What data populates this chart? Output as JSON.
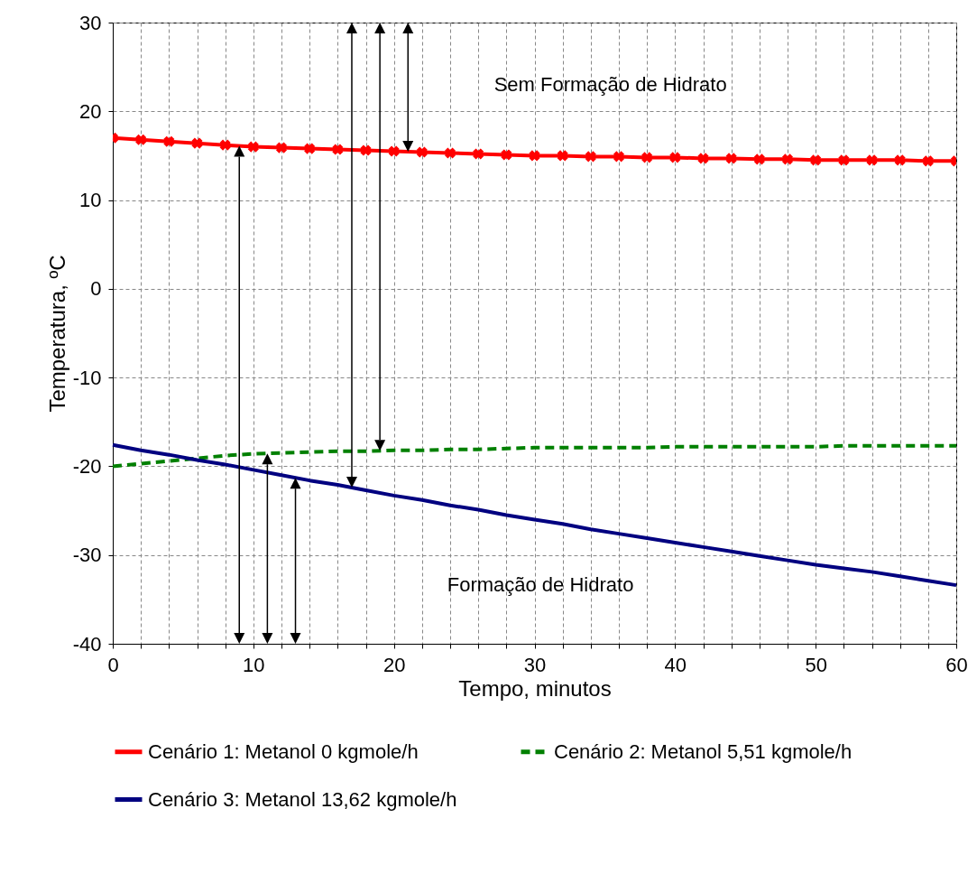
{
  "chart_data": {
    "type": "line",
    "xlabel": "Tempo, minutos",
    "ylabel": "Temperatura, ºC",
    "x": [
      0,
      2,
      4,
      6,
      8,
      10,
      12,
      14,
      16,
      18,
      20,
      22,
      24,
      26,
      28,
      30,
      32,
      34,
      36,
      38,
      40,
      42,
      44,
      46,
      48,
      50,
      52,
      54,
      56,
      58,
      60
    ],
    "series": [
      {
        "name": "Cenário 1: Metanol 0 kgmole/h",
        "color": "#ff0000",
        "marker": "cross",
        "line_style": "solid",
        "values": [
          17.0,
          16.8,
          16.6,
          16.4,
          16.2,
          16.0,
          15.9,
          15.8,
          15.7,
          15.6,
          15.5,
          15.4,
          15.3,
          15.2,
          15.1,
          15.0,
          15.0,
          14.9,
          14.9,
          14.8,
          14.8,
          14.7,
          14.7,
          14.6,
          14.6,
          14.5,
          14.5,
          14.5,
          14.5,
          14.4,
          14.4
        ]
      },
      {
        "name": "Cenário 2: Metanol 5,51 kgmole/h",
        "color": "#008000",
        "marker": "none",
        "line_style": "dashed",
        "values": [
          -20.0,
          -19.7,
          -19.4,
          -19.1,
          -18.8,
          -18.6,
          -18.5,
          -18.4,
          -18.3,
          -18.3,
          -18.2,
          -18.2,
          -18.1,
          -18.1,
          -18.0,
          -17.9,
          -17.9,
          -17.9,
          -17.9,
          -17.9,
          -17.8,
          -17.8,
          -17.8,
          -17.8,
          -17.8,
          -17.8,
          -17.7,
          -17.7,
          -17.7,
          -17.7,
          -17.7
        ]
      },
      {
        "name": "Cenário 3: Metanol 13,62 kgmole/h",
        "color": "#000080",
        "marker": "none",
        "line_style": "solid",
        "values": [
          -17.6,
          -18.2,
          -18.7,
          -19.3,
          -19.8,
          -20.4,
          -21.0,
          -21.6,
          -22.1,
          -22.7,
          -23.3,
          -23.8,
          -24.4,
          -24.9,
          -25.5,
          -26.0,
          -26.5,
          -27.1,
          -27.6,
          -28.1,
          -28.6,
          -29.1,
          -29.6,
          -30.1,
          -30.6,
          -31.1,
          -31.5,
          -31.9,
          -32.4,
          -32.9,
          -33.4
        ]
      }
    ],
    "xlim": [
      0,
      60
    ],
    "ylim": [
      -40,
      30
    ],
    "xticks": [
      0,
      {
        "value": 2,
        "label": null
      },
      {
        "value": 4,
        "label": null
      },
      {
        "value": 6,
        "label": null
      },
      {
        "value": 8,
        "label": null
      },
      10,
      {
        "value": 12,
        "label": null
      },
      {
        "value": 14,
        "label": null
      },
      {
        "value": 16,
        "label": null
      },
      {
        "value": 18,
        "label": null
      },
      20,
      {
        "value": 22,
        "label": null
      },
      {
        "value": 24,
        "label": null
      },
      {
        "value": 26,
        "label": null
      },
      {
        "value": 28,
        "label": null
      },
      30,
      {
        "value": 32,
        "label": null
      },
      {
        "value": 34,
        "label": null
      },
      {
        "value": 36,
        "label": null
      },
      {
        "value": 38,
        "label": null
      },
      40,
      {
        "value": 42,
        "label": null
      },
      {
        "value": 44,
        "label": null
      },
      {
        "value": 46,
        "label": null
      },
      {
        "value": 48,
        "label": null
      },
      50,
      {
        "value": 52,
        "label": null
      },
      {
        "value": 54,
        "label": null
      },
      {
        "value": 56,
        "label": null
      },
      {
        "value": 58,
        "label": null
      },
      60
    ],
    "yticks": [
      -40,
      -30,
      -20,
      -10,
      0,
      10,
      20,
      30
    ],
    "grid": true,
    "legend": "bottom",
    "annotations": [
      "Sem Formação de Hidrato",
      "Formação de Hidrato"
    ]
  }
}
